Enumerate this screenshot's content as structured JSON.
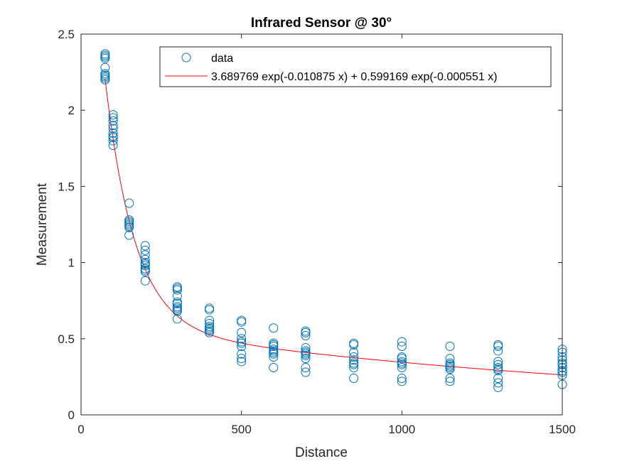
{
  "chart_data": {
    "type": "scatter",
    "title": "Infrared Sensor @ 30°",
    "xlabel": "Distance",
    "ylabel": "Measurement",
    "xlim": [
      0,
      1500
    ],
    "ylim": [
      0,
      2.5
    ],
    "xticks": [
      0,
      500,
      1000,
      1500
    ],
    "xtick_labels": [
      "0",
      "500",
      "1000",
      "1500"
    ],
    "yticks": [
      0,
      0.5,
      1,
      1.5,
      2,
      2.5
    ],
    "ytick_labels": [
      "0",
      "0.5",
      "1",
      "1.5",
      "2",
      "2.5"
    ],
    "grid": false,
    "legend_position": "top-right",
    "legend": [
      {
        "label": "data",
        "marker": "circle",
        "color": "#0072BD"
      },
      {
        "label": "3.689769 exp(-0.010875 x) + 0.599169 exp(-0.000551 x)",
        "line": "solid",
        "color": "#FF0000"
      }
    ],
    "series": [
      {
        "name": "data",
        "kind": "scatter",
        "color": "#0072BD",
        "points": [
          [
            75,
            2.37
          ],
          [
            75,
            2.36
          ],
          [
            75,
            2.35
          ],
          [
            75,
            2.34
          ],
          [
            75,
            2.28
          ],
          [
            75,
            2.24
          ],
          [
            75,
            2.23
          ],
          [
            75,
            2.22
          ],
          [
            75,
            2.21
          ],
          [
            75,
            2.2
          ],
          [
            100,
            1.97
          ],
          [
            100,
            1.95
          ],
          [
            100,
            1.93
          ],
          [
            100,
            1.9
          ],
          [
            100,
            1.88
          ],
          [
            100,
            1.85
          ],
          [
            100,
            1.83
          ],
          [
            100,
            1.82
          ],
          [
            100,
            1.8
          ],
          [
            100,
            1.77
          ],
          [
            150,
            1.39
          ],
          [
            150,
            1.28
          ],
          [
            150,
            1.27
          ],
          [
            150,
            1.26
          ],
          [
            150,
            1.25
          ],
          [
            150,
            1.24
          ],
          [
            150,
            1.23
          ],
          [
            150,
            1.18
          ],
          [
            200,
            1.11
          ],
          [
            200,
            1.08
          ],
          [
            200,
            1.05
          ],
          [
            200,
            1.02
          ],
          [
            200,
            1.0
          ],
          [
            200,
            0.99
          ],
          [
            200,
            0.98
          ],
          [
            200,
            0.96
          ],
          [
            200,
            0.95
          ],
          [
            200,
            0.94
          ],
          [
            200,
            0.88
          ],
          [
            300,
            0.84
          ],
          [
            300,
            0.83
          ],
          [
            300,
            0.82
          ],
          [
            300,
            0.78
          ],
          [
            300,
            0.74
          ],
          [
            300,
            0.73
          ],
          [
            300,
            0.71
          ],
          [
            300,
            0.7
          ],
          [
            300,
            0.69
          ],
          [
            300,
            0.68
          ],
          [
            300,
            0.63
          ],
          [
            400,
            0.7
          ],
          [
            400,
            0.69
          ],
          [
            400,
            0.62
          ],
          [
            400,
            0.6
          ],
          [
            400,
            0.58
          ],
          [
            400,
            0.57
          ],
          [
            400,
            0.56
          ],
          [
            400,
            0.55
          ],
          [
            400,
            0.54
          ],
          [
            500,
            0.62
          ],
          [
            500,
            0.61
          ],
          [
            500,
            0.54
          ],
          [
            500,
            0.5
          ],
          [
            500,
            0.48
          ],
          [
            500,
            0.47
          ],
          [
            500,
            0.45
          ],
          [
            500,
            0.4
          ],
          [
            500,
            0.37
          ],
          [
            500,
            0.35
          ],
          [
            600,
            0.57
          ],
          [
            600,
            0.47
          ],
          [
            600,
            0.46
          ],
          [
            600,
            0.45
          ],
          [
            600,
            0.43
          ],
          [
            600,
            0.42
          ],
          [
            600,
            0.41
          ],
          [
            600,
            0.4
          ],
          [
            600,
            0.38
          ],
          [
            600,
            0.31
          ],
          [
            700,
            0.55
          ],
          [
            700,
            0.54
          ],
          [
            700,
            0.52
          ],
          [
            700,
            0.44
          ],
          [
            700,
            0.42
          ],
          [
            700,
            0.41
          ],
          [
            700,
            0.4
          ],
          [
            700,
            0.39
          ],
          [
            700,
            0.37
          ],
          [
            700,
            0.31
          ],
          [
            700,
            0.28
          ],
          [
            850,
            0.47
          ],
          [
            850,
            0.46
          ],
          [
            850,
            0.41
          ],
          [
            850,
            0.38
          ],
          [
            850,
            0.36
          ],
          [
            850,
            0.34
          ],
          [
            850,
            0.33
          ],
          [
            850,
            0.31
          ],
          [
            850,
            0.24
          ],
          [
            1000,
            0.48
          ],
          [
            1000,
            0.45
          ],
          [
            1000,
            0.38
          ],
          [
            1000,
            0.37
          ],
          [
            1000,
            0.35
          ],
          [
            1000,
            0.34
          ],
          [
            1000,
            0.33
          ],
          [
            1000,
            0.31
          ],
          [
            1000,
            0.24
          ],
          [
            1000,
            0.22
          ],
          [
            1150,
            0.45
          ],
          [
            1150,
            0.37
          ],
          [
            1150,
            0.34
          ],
          [
            1150,
            0.33
          ],
          [
            1150,
            0.32
          ],
          [
            1150,
            0.31
          ],
          [
            1150,
            0.3
          ],
          [
            1150,
            0.24
          ],
          [
            1150,
            0.22
          ],
          [
            1300,
            0.46
          ],
          [
            1300,
            0.45
          ],
          [
            1300,
            0.42
          ],
          [
            1300,
            0.35
          ],
          [
            1300,
            0.33
          ],
          [
            1300,
            0.31
          ],
          [
            1300,
            0.3
          ],
          [
            1300,
            0.29
          ],
          [
            1300,
            0.24
          ],
          [
            1300,
            0.21
          ],
          [
            1300,
            0.18
          ],
          [
            1500,
            0.43
          ],
          [
            1500,
            0.41
          ],
          [
            1500,
            0.38
          ],
          [
            1500,
            0.36
          ],
          [
            1500,
            0.34
          ],
          [
            1500,
            0.33
          ],
          [
            1500,
            0.31
          ],
          [
            1500,
            0.29
          ],
          [
            1500,
            0.28
          ],
          [
            1500,
            0.26
          ],
          [
            1500,
            0.2
          ]
        ]
      },
      {
        "name": "3.689769 exp(-0.010875 x) + 0.599169 exp(-0.000551 x)",
        "kind": "line",
        "color": "#FF0000",
        "x_range": [
          75,
          1500
        ],
        "a": 3.689769,
        "b": -0.010875,
        "c": 0.599169,
        "d": -0.000551
      }
    ]
  }
}
